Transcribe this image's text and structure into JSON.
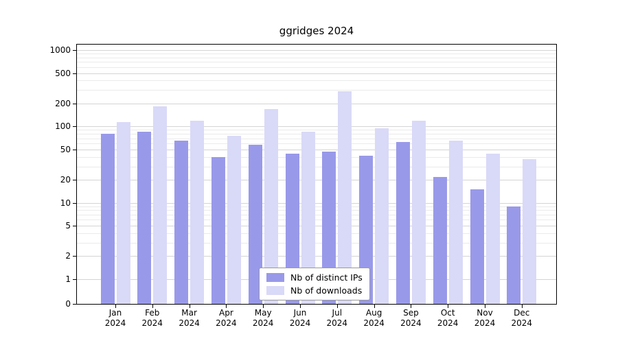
{
  "title": "ggridges 2024",
  "chart_data": {
    "type": "bar",
    "title": "ggridges 2024",
    "categories": [
      "Jan",
      "Feb",
      "Mar",
      "Apr",
      "May",
      "Jun",
      "Jul",
      "Aug",
      "Sep",
      "Oct",
      "Nov",
      "Dec"
    ],
    "year_label": "2024",
    "series": [
      {
        "name": "Nb of distinct IPs",
        "color": "#9999ea",
        "values": [
          80,
          85,
          65,
          40,
          58,
          44,
          47,
          41,
          62,
          22,
          15,
          9
        ]
      },
      {
        "name": "Nb of downloads",
        "color": "#d9d9f8",
        "values": [
          115,
          185,
          120,
          75,
          170,
          85,
          290,
          95,
          120,
          65,
          44,
          37
        ]
      }
    ],
    "y_scale": "symlog",
    "y_ticks": [
      0,
      1,
      2,
      5,
      10,
      20,
      50,
      100,
      200,
      500,
      1000
    ],
    "y_minor_ticks": [
      3,
      4,
      6,
      7,
      8,
      9,
      30,
      40,
      60,
      70,
      80,
      90,
      300,
      400,
      600,
      700,
      800,
      900
    ],
    "ylim": [
      0,
      1000
    ],
    "grid": true,
    "legend_position": "bottom-center",
    "colors": {
      "grid_major": "#d4d4d4",
      "grid_minor": "#eaeaea",
      "axis": "#000000",
      "background": "#ffffff"
    }
  }
}
